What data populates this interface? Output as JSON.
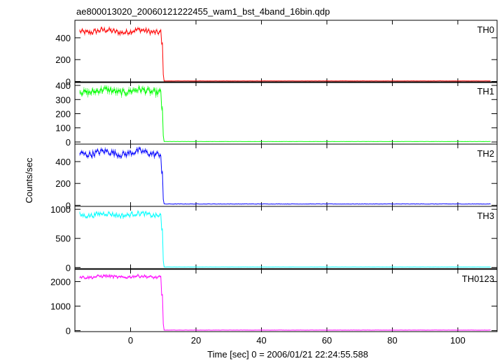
{
  "chart_data": {
    "type": "line",
    "title": "ae800013020_20060121222455_wam1_bst_4band_16bin.qdp",
    "xlabel": "Time [sec] 0 = 2006/01/21 22:24:55.588",
    "ylabel": "Counts/sec",
    "xlim": [
      -17,
      112
    ],
    "x_ticks": [
      0,
      20,
      40,
      60,
      80,
      100
    ],
    "x_tick_labels": [
      "0",
      "20",
      "40",
      "60",
      "80",
      "100"
    ],
    "grid": false,
    "drop_time": 9.8,
    "x_start": -15.5,
    "x_end": 110,
    "panels": [
      {
        "name": "TH0",
        "color": "#ff0000",
        "ylim": [
          -10,
          560
        ],
        "yticks": [
          0,
          200,
          400
        ],
        "ytick_labels": [
          "0",
          "200",
          "400"
        ],
        "level": 460,
        "noise": 25,
        "error": 12,
        "decay": [
          345,
          320
        ],
        "post": 5
      },
      {
        "name": "TH1",
        "color": "#00ff00",
        "ylim": [
          -15,
          425
        ],
        "yticks": [
          0,
          100,
          200,
          300,
          400
        ],
        "ytick_labels": [
          "0",
          "100",
          "200",
          "300",
          "400"
        ],
        "level": 360,
        "noise": 22,
        "error": 15,
        "decay": [
          240,
          220
        ],
        "post": 3
      },
      {
        "name": "TH2",
        "color": "#0000ff",
        "ylim": [
          -10,
          560
        ],
        "yticks": [
          0,
          200,
          400
        ],
        "ytick_labels": [
          "0",
          "200",
          "400"
        ],
        "level": 480,
        "noise": 30,
        "error": 14,
        "decay": [
          300,
          270
        ],
        "post": 12
      },
      {
        "name": "TH3",
        "color": "#00ffff",
        "ylim": [
          -20,
          1050
        ],
        "yticks": [
          0,
          500,
          1000
        ],
        "ytick_labels": [
          "0",
          "500",
          "1000"
        ],
        "level": 910,
        "noise": 40,
        "error": 20,
        "decay": [
          650,
          580
        ],
        "post": 8
      },
      {
        "name": "TH0123",
        "color": "#ff00ff",
        "ylim": [
          -40,
          2500
        ],
        "yticks": [
          0,
          1000,
          2000
        ],
        "ytick_labels": [
          "0",
          "1000",
          "2000"
        ],
        "level": 2200,
        "noise": 60,
        "error": 35,
        "decay": [
          1450,
          1380
        ],
        "post": 20
      }
    ]
  }
}
